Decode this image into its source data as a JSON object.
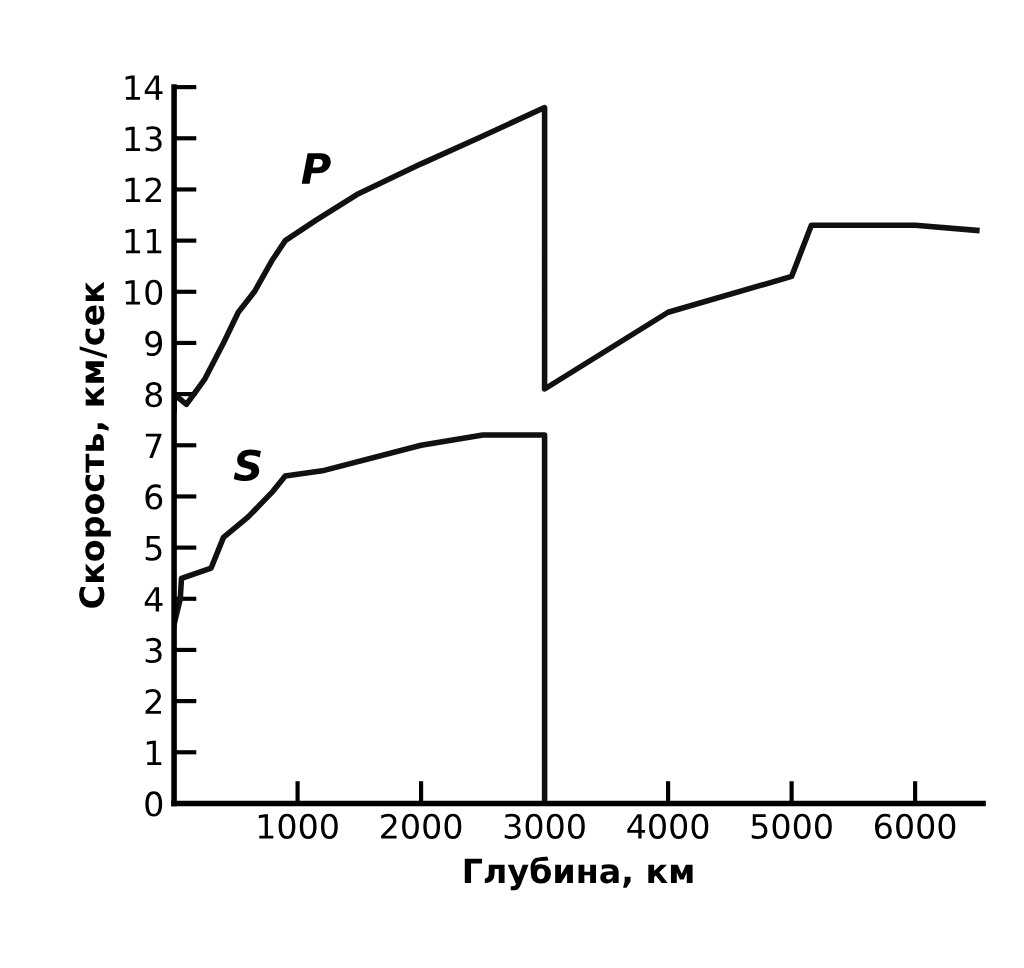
{
  "chart_data": {
    "type": "line",
    "xlabel": "Глубина, км",
    "ylabel": "Скорость, км/сек",
    "series": [
      {
        "name": "P",
        "color": "#111111",
        "x": [
          0,
          0,
          100,
          250,
          400,
          520,
          650,
          790,
          900,
          1150,
          1480,
          2000,
          2460,
          3000,
          3000,
          4000,
          5000,
          5160,
          6000,
          6500
        ],
        "values": [
          7.7,
          8.0,
          7.8,
          8.3,
          9.0,
          9.6,
          10.0,
          10.6,
          11.0,
          11.4,
          11.9,
          12.5,
          13.0,
          13.6,
          8.1,
          9.6,
          10.3,
          11.3,
          11.3,
          11.2
        ]
      },
      {
        "name": "S",
        "color": "#111111",
        "x": [
          0,
          50,
          60,
          300,
          400,
          600,
          800,
          900,
          1200,
          2000,
          2500,
          3000,
          3000
        ],
        "values": [
          3.5,
          4.0,
          4.4,
          4.6,
          5.2,
          5.6,
          6.1,
          6.4,
          6.5,
          7.0,
          7.2,
          7.2,
          0
        ]
      }
    ],
    "xlim": [
      0,
      6550
    ],
    "ylim": [
      0,
      14
    ],
    "xticks": [
      1000,
      2000,
      3000,
      4000,
      5000,
      6000
    ],
    "yticks": [
      0,
      1,
      2,
      3,
      4,
      5,
      6,
      7,
      8,
      9,
      10,
      11,
      12,
      13,
      14
    ],
    "grid": false,
    "legend": false,
    "marker": "none",
    "line_style": "solid"
  }
}
